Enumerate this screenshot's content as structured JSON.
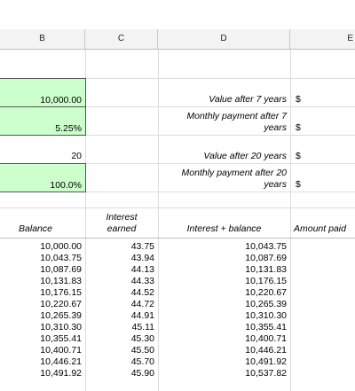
{
  "columns": [
    "B",
    "C",
    "D",
    "E"
  ],
  "inputs": {
    "principal": "10,000.00",
    "rate": "5.25%",
    "years": "20",
    "pct": "100.0%"
  },
  "labels": {
    "value7": "Value after 7 years",
    "monthly7_line1": "Monthly payment after 7",
    "monthly7_line2": "years",
    "value20": "Value after 20 years",
    "monthly20_line1": "Monthly payment after 20",
    "monthly20_line2": "years",
    "currency": "$"
  },
  "table": {
    "headers": {
      "balance": "Balance",
      "interest_line1": "Interest",
      "interest_line2": "earned",
      "interest_balance": "Interest + balance",
      "amount_paid": "Amount paid"
    },
    "rows": [
      {
        "balance": "10,000.00",
        "interest": "43.75",
        "total": "10,043.75"
      },
      {
        "balance": "10,043.75",
        "interest": "43.94",
        "total": "10,087.69"
      },
      {
        "balance": "10,087.69",
        "interest": "44.13",
        "total": "10,131.83"
      },
      {
        "balance": "10,131.83",
        "interest": "44.33",
        "total": "10,176.15"
      },
      {
        "balance": "10,176.15",
        "interest": "44.52",
        "total": "10,220.67"
      },
      {
        "balance": "10,220.67",
        "interest": "44.72",
        "total": "10,265.39"
      },
      {
        "balance": "10,265.39",
        "interest": "44.91",
        "total": "10,310.30"
      },
      {
        "balance": "10,310.30",
        "interest": "45.11",
        "total": "10,355.41"
      },
      {
        "balance": "10,355.41",
        "interest": "45.30",
        "total": "10,400.71"
      },
      {
        "balance": "10,400.71",
        "interest": "45.50",
        "total": "10,446.21"
      },
      {
        "balance": "10,446.21",
        "interest": "45.70",
        "total": "10,491.92"
      },
      {
        "balance": "10,491.92",
        "interest": "45.90",
        "total": "10,537.82"
      }
    ]
  }
}
